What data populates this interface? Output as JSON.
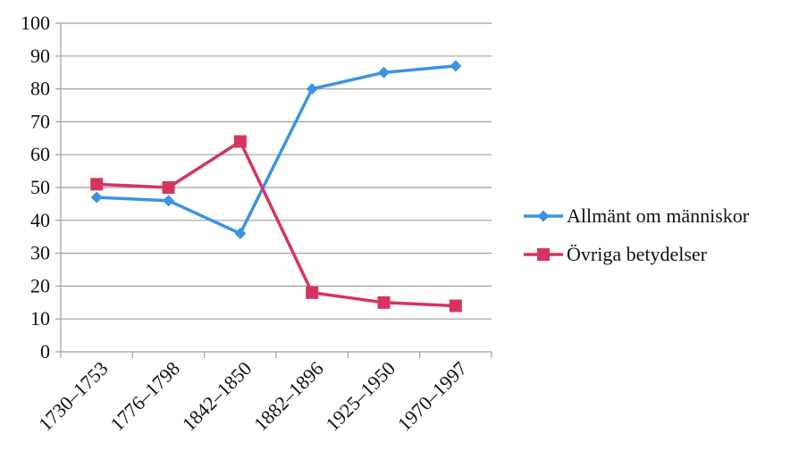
{
  "chart_data": {
    "type": "line",
    "categories": [
      "1730–1753",
      "1776–1798",
      "1842–1850",
      "1882–1896",
      "1925–1950",
      "1970–1997"
    ],
    "series": [
      {
        "name": "Allmänt om människor",
        "values": [
          47,
          46,
          36,
          80,
          85,
          87
        ],
        "color": "#3c93e0",
        "marker": "diamond"
      },
      {
        "name": "Övriga betydelser",
        "values": [
          51,
          50,
          64,
          18,
          15,
          14
        ],
        "color": "#d6345f",
        "marker": "square"
      }
    ],
    "ylim": [
      0,
      100
    ],
    "yticks": [
      0,
      10,
      20,
      30,
      40,
      50,
      60,
      70,
      80,
      90,
      100
    ],
    "grid": true,
    "legend_position": "right",
    "title": "",
    "xlabel": "",
    "ylabel": ""
  }
}
